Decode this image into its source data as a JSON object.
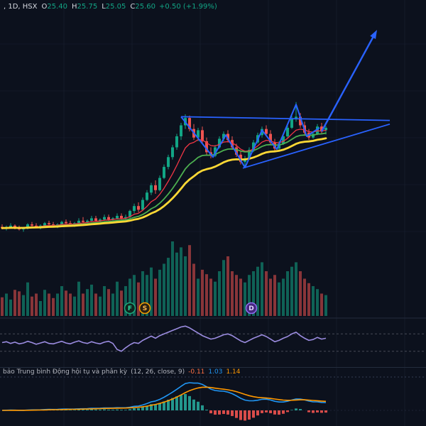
{
  "header": {
    "symbol_info": ", 1D, HSX",
    "o_label": "O",
    "o_value": "25.40",
    "h_label": "H",
    "h_value": "25.75",
    "l_label": "L",
    "l_value": "25.05",
    "c_label": "C",
    "c_value": "25.60",
    "change": "+0.50 (+1.99%)"
  },
  "macd_legend": {
    "title": "bảo Trung bình Động hội tụ và phân kỳ",
    "params": "(12, 26, close, 9)",
    "hist": "-0.11",
    "macd": "1.03",
    "signal": "1.14"
  },
  "colors": {
    "bg": "#0c111d",
    "grid": "#1b2434",
    "separator": "#232c3d",
    "text": "#b2b5be",
    "text_bright": "#d6d9e0",
    "up": "#12a585",
    "down": "#ef5350",
    "ma_fast": "#f23645",
    "ma_mid": "#4caf50",
    "ma_slow": "#fdd835",
    "drawing": "#2962ff",
    "oscillator": "#9b8ce0",
    "band": "#787b86",
    "macd_line": "#2196f3",
    "signal_line": "#ff9800",
    "hist_up": "#26a69a",
    "hist_down": "#ef5350",
    "hist_value": "#ff7043"
  },
  "chart_data": {
    "type": "candlestick",
    "title": "Daily candlestick chart with volume, oscillator and MACD panes; flat base, strong rally, pennant consolidation with blue trendlines and upward projection arrow",
    "price_ylim": [
      16.6,
      35.0
    ],
    "legend_position": "top-left",
    "grid": true,
    "candles": [
      [
        17.5,
        17.7,
        17.3,
        17.4,
        0.25
      ],
      [
        17.4,
        17.6,
        17.2,
        17.5,
        0.3
      ],
      [
        17.5,
        17.8,
        17.4,
        17.6,
        0.22
      ],
      [
        17.6,
        17.7,
        17.3,
        17.4,
        0.35
      ],
      [
        17.4,
        17.6,
        17.2,
        17.3,
        0.33
      ],
      [
        17.3,
        17.5,
        17.1,
        17.4,
        0.28
      ],
      [
        17.4,
        17.8,
        17.3,
        17.7,
        0.45
      ],
      [
        17.7,
        17.9,
        17.5,
        17.6,
        0.26
      ],
      [
        17.6,
        17.8,
        17.4,
        17.5,
        0.3
      ],
      [
        17.5,
        17.7,
        17.3,
        17.6,
        0.2
      ],
      [
        17.6,
        17.9,
        17.5,
        17.8,
        0.35
      ],
      [
        17.8,
        18.0,
        17.6,
        17.7,
        0.3
      ],
      [
        17.7,
        17.9,
        17.5,
        17.6,
        0.24
      ],
      [
        17.6,
        17.8,
        17.4,
        17.7,
        0.3
      ],
      [
        17.7,
        18.0,
        17.6,
        17.9,
        0.4
      ],
      [
        17.9,
        18.1,
        17.7,
        17.8,
        0.34
      ],
      [
        17.8,
        18.0,
        17.6,
        17.7,
        0.3
      ],
      [
        17.7,
        17.9,
        17.5,
        17.8,
        0.26
      ],
      [
        17.8,
        18.2,
        17.7,
        18.0,
        0.46
      ],
      [
        18.0,
        18.3,
        17.8,
        17.9,
        0.3
      ],
      [
        17.9,
        18.1,
        17.7,
        18.0,
        0.36
      ],
      [
        18.0,
        18.4,
        17.9,
        18.2,
        0.42
      ],
      [
        18.2,
        18.4,
        17.9,
        18.0,
        0.3
      ],
      [
        18.0,
        18.2,
        17.8,
        18.1,
        0.26
      ],
      [
        18.1,
        18.5,
        18.0,
        18.3,
        0.4
      ],
      [
        18.3,
        18.5,
        18.0,
        18.1,
        0.36
      ],
      [
        18.1,
        18.3,
        17.9,
        18.2,
        0.3
      ],
      [
        18.2,
        18.6,
        18.1,
        18.4,
        0.46
      ],
      [
        18.4,
        18.6,
        18.1,
        18.2,
        0.34
      ],
      [
        18.2,
        18.5,
        18.0,
        18.3,
        0.4
      ],
      [
        18.3,
        18.9,
        18.2,
        18.8,
        0.5
      ],
      [
        18.8,
        19.4,
        18.6,
        19.2,
        0.55
      ],
      [
        19.2,
        19.5,
        18.7,
        18.9,
        0.45
      ],
      [
        18.9,
        19.9,
        18.8,
        19.7,
        0.6
      ],
      [
        19.7,
        20.5,
        19.6,
        20.3,
        0.55
      ],
      [
        20.3,
        21.1,
        20.1,
        20.9,
        0.65
      ],
      [
        20.9,
        21.3,
        20.2,
        20.5,
        0.5
      ],
      [
        20.5,
        21.7,
        20.4,
        21.5,
        0.62
      ],
      [
        21.5,
        22.6,
        21.4,
        22.4,
        0.7
      ],
      [
        22.4,
        23.4,
        22.2,
        23.2,
        0.78
      ],
      [
        23.2,
        24.2,
        23.0,
        24.0,
        1.0
      ],
      [
        24.0,
        25.1,
        23.8,
        24.9,
        0.85
      ],
      [
        24.9,
        26.0,
        24.6,
        25.8,
        0.92
      ],
      [
        25.8,
        26.7,
        25.5,
        26.4,
        0.8
      ],
      [
        26.4,
        26.6,
        25.3,
        25.5,
        0.95
      ],
      [
        25.5,
        25.9,
        24.6,
        24.8,
        0.7
      ],
      [
        24.8,
        25.6,
        24.5,
        25.4,
        0.5
      ],
      [
        25.4,
        25.7,
        24.3,
        24.5,
        0.62
      ],
      [
        24.5,
        24.8,
        23.4,
        23.6,
        0.56
      ],
      [
        23.6,
        24.0,
        23.1,
        23.3,
        0.5
      ],
      [
        23.3,
        24.2,
        23.2,
        24.0,
        0.46
      ],
      [
        24.0,
        24.9,
        23.9,
        24.7,
        0.6
      ],
      [
        24.7,
        25.3,
        24.5,
        25.1,
        0.75
      ],
      [
        25.1,
        25.4,
        24.4,
        24.6,
        0.8
      ],
      [
        24.6,
        24.9,
        23.8,
        24.0,
        0.6
      ],
      [
        24.0,
        24.3,
        23.2,
        23.4,
        0.55
      ],
      [
        23.4,
        23.7,
        22.6,
        22.8,
        0.5
      ],
      [
        22.8,
        23.3,
        22.3,
        23.1,
        0.45
      ],
      [
        23.1,
        24.0,
        23.0,
        23.8,
        0.55
      ],
      [
        23.8,
        24.6,
        23.6,
        24.4,
        0.6
      ],
      [
        24.4,
        25.2,
        24.3,
        25.0,
        0.66
      ],
      [
        25.0,
        25.7,
        24.8,
        25.5,
        0.72
      ],
      [
        25.5,
        25.8,
        24.9,
        25.1,
        0.6
      ],
      [
        25.1,
        25.4,
        24.2,
        24.4,
        0.5
      ],
      [
        24.4,
        24.7,
        23.7,
        23.9,
        0.55
      ],
      [
        23.9,
        24.5,
        23.8,
        24.3,
        0.45
      ],
      [
        24.3,
        25.1,
        24.2,
        24.9,
        0.5
      ],
      [
        24.9,
        25.8,
        24.8,
        25.6,
        0.6
      ],
      [
        25.6,
        26.6,
        25.5,
        26.3,
        0.66
      ],
      [
        26.3,
        27.7,
        26.1,
        26.5,
        0.72
      ],
      [
        26.5,
        26.8,
        25.6,
        25.8,
        0.6
      ],
      [
        25.8,
        26.1,
        25.0,
        25.2,
        0.5
      ],
      [
        25.2,
        25.5,
        24.6,
        24.8,
        0.44
      ],
      [
        24.8,
        25.3,
        24.7,
        25.1,
        0.4
      ],
      [
        25.1,
        25.9,
        25.0,
        25.7,
        0.36
      ],
      [
        25.7,
        26.0,
        25.1,
        25.3,
        0.3
      ],
      [
        25.4,
        25.75,
        25.05,
        25.6,
        0.28
      ]
    ],
    "moving_averages": [
      {
        "name": "fast-ema",
        "period": 8,
        "color_key": "ma_fast"
      },
      {
        "name": "mid-ema",
        "period": 16,
        "color_key": "ma_mid"
      },
      {
        "name": "slow-ema",
        "period": 26,
        "color_key": "ma_slow"
      }
    ],
    "volume_markers": [
      {
        "label": "F",
        "index": 30,
        "ring": "#1ea97c",
        "fill": "#10241e",
        "text": "#2bd99f"
      },
      {
        "label": "S",
        "index": 33.5,
        "ring": "#f59f00",
        "fill": "#2a2113",
        "text": "#ffb74d"
      },
      {
        "label": "D",
        "index": 58.5,
        "ring": "#8e6cf0",
        "fill": "#45277e",
        "text": "#e0d7ff"
      }
    ],
    "oscillator": {
      "type": "line",
      "ylim": [
        0,
        100
      ],
      "bands": [
        70,
        30
      ],
      "values": [
        50,
        52,
        48,
        51,
        47,
        49,
        53,
        50,
        46,
        49,
        52,
        48,
        47,
        50,
        53,
        49,
        47,
        51,
        54,
        50,
        48,
        52,
        49,
        47,
        51,
        53,
        48,
        34,
        30,
        38,
        45,
        50,
        48,
        55,
        60,
        65,
        60,
        66,
        70,
        74,
        78,
        82,
        86,
        88,
        84,
        78,
        72,
        66,
        62,
        58,
        60,
        64,
        68,
        70,
        66,
        60,
        54,
        50,
        55,
        60,
        64,
        68,
        64,
        58,
        52,
        55,
        60,
        64,
        70,
        74,
        66,
        60,
        55,
        57,
        62,
        58,
        60
      ]
    },
    "macd": {
      "fast": 12,
      "slow": 26,
      "source": "close",
      "signal": 9
    },
    "drawings": {
      "resistance_line": [
        [
          42,
          26.5
        ],
        [
          91,
          26.2
        ]
      ],
      "support_line": [
        [
          56.5,
          22.3
        ],
        [
          91,
          25.9
        ]
      ],
      "wave_polyline": [
        [
          42,
          26.5
        ],
        [
          49.5,
          23.2
        ],
        [
          52.5,
          25.0
        ],
        [
          57,
          22.35
        ],
        [
          61,
          25.4
        ],
        [
          64.5,
          23.85
        ],
        [
          69,
          27.5
        ],
        [
          71.5,
          24.9
        ],
        [
          74.5,
          25.6
        ]
      ],
      "projection_arrow": [
        [
          75,
          25.3
        ],
        [
          88,
          33.6
        ]
      ]
    }
  }
}
